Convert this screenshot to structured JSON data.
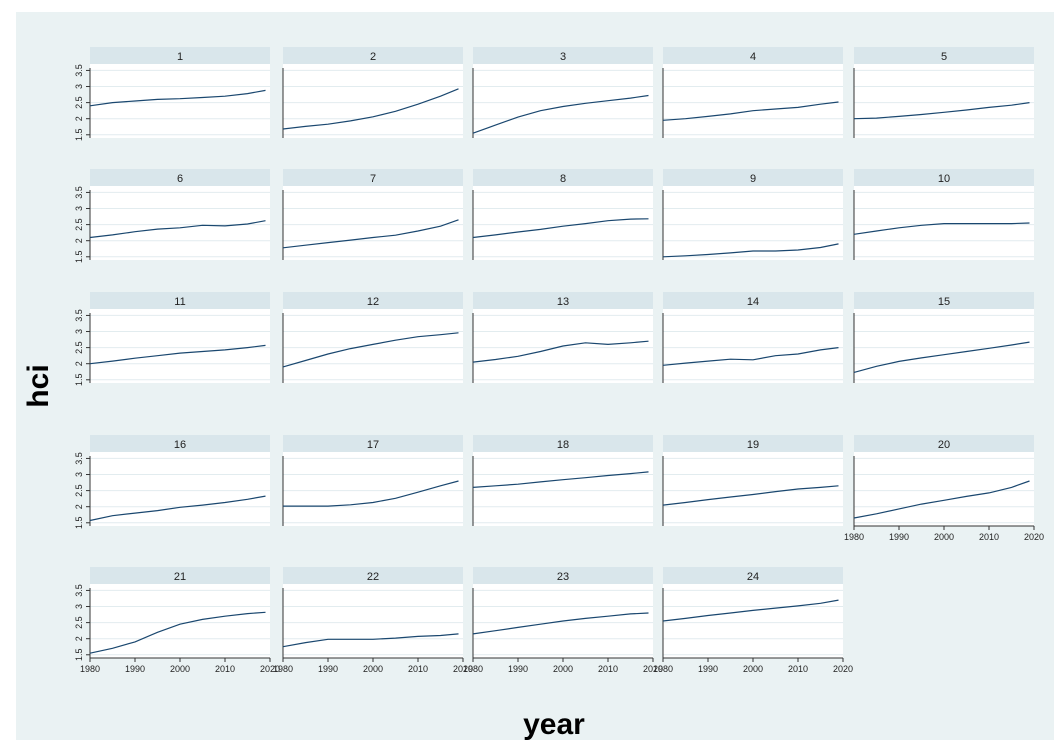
{
  "chart_data": {
    "type": "line",
    "xlabel": "year",
    "ylabel": "hci",
    "xlim": [
      1980,
      2020
    ],
    "ylim": [
      1.4,
      3.7
    ],
    "xticks": [
      1980,
      1990,
      2000,
      2010,
      2020
    ],
    "yticks": [
      1.5,
      2,
      2.5,
      3,
      3.5
    ],
    "xtick_labels": [
      "1980",
      "1990",
      "2000",
      "2010",
      "2020"
    ],
    "ytick_labels": [
      "1.5",
      "2",
      "2.5",
      "3",
      "3.5"
    ],
    "grid": true,
    "x": [
      1980,
      1985,
      1990,
      1995,
      2000,
      2005,
      2010,
      2015,
      2019
    ],
    "series": [
      {
        "panel": "1",
        "values": [
          2.4,
          2.5,
          2.55,
          2.6,
          2.62,
          2.66,
          2.7,
          2.78,
          2.88
        ]
      },
      {
        "panel": "2",
        "values": [
          1.68,
          1.76,
          1.83,
          1.93,
          2.06,
          2.23,
          2.45,
          2.7,
          2.93
        ]
      },
      {
        "panel": "3",
        "values": [
          1.55,
          1.8,
          2.05,
          2.25,
          2.38,
          2.48,
          2.56,
          2.64,
          2.72
        ]
      },
      {
        "panel": "4",
        "values": [
          1.95,
          2.0,
          2.07,
          2.15,
          2.25,
          2.3,
          2.35,
          2.45,
          2.52
        ]
      },
      {
        "panel": "5",
        "values": [
          2.0,
          2.02,
          2.07,
          2.13,
          2.2,
          2.27,
          2.35,
          2.42,
          2.5
        ]
      },
      {
        "panel": "6",
        "values": [
          2.1,
          2.18,
          2.28,
          2.36,
          2.4,
          2.48,
          2.46,
          2.52,
          2.62
        ]
      },
      {
        "panel": "7",
        "values": [
          1.78,
          1.86,
          1.94,
          2.02,
          2.1,
          2.17,
          2.3,
          2.45,
          2.65
        ]
      },
      {
        "panel": "8",
        "values": [
          2.1,
          2.18,
          2.27,
          2.35,
          2.45,
          2.53,
          2.62,
          2.67,
          2.68
        ]
      },
      {
        "panel": "9",
        "values": [
          1.5,
          1.53,
          1.57,
          1.62,
          1.68,
          1.68,
          1.71,
          1.79,
          1.9
        ]
      },
      {
        "panel": "10",
        "values": [
          2.2,
          2.3,
          2.4,
          2.48,
          2.53,
          2.53,
          2.53,
          2.53,
          2.55
        ]
      },
      {
        "panel": "11",
        "values": [
          2.0,
          2.08,
          2.17,
          2.25,
          2.33,
          2.38,
          2.43,
          2.5,
          2.57
        ]
      },
      {
        "panel": "12",
        "values": [
          1.9,
          2.1,
          2.3,
          2.47,
          2.6,
          2.73,
          2.84,
          2.9,
          2.96
        ]
      },
      {
        "panel": "13",
        "values": [
          2.05,
          2.13,
          2.23,
          2.38,
          2.55,
          2.65,
          2.6,
          2.65,
          2.7
        ]
      },
      {
        "panel": "14",
        "values": [
          1.95,
          2.02,
          2.08,
          2.14,
          2.12,
          2.25,
          2.3,
          2.43,
          2.5
        ]
      },
      {
        "panel": "15",
        "values": [
          1.73,
          1.92,
          2.07,
          2.18,
          2.28,
          2.38,
          2.48,
          2.58,
          2.67
        ]
      },
      {
        "panel": "16",
        "values": [
          1.57,
          1.72,
          1.8,
          1.88,
          1.98,
          2.05,
          2.13,
          2.23,
          2.33
        ]
      },
      {
        "panel": "17",
        "values": [
          2.02,
          2.02,
          2.02,
          2.06,
          2.13,
          2.26,
          2.45,
          2.65,
          2.8
        ]
      },
      {
        "panel": "18",
        "values": [
          2.6,
          2.65,
          2.7,
          2.77,
          2.84,
          2.9,
          2.97,
          3.03,
          3.08
        ]
      },
      {
        "panel": "19",
        "values": [
          2.05,
          2.13,
          2.22,
          2.3,
          2.38,
          2.47,
          2.55,
          2.6,
          2.65
        ]
      },
      {
        "panel": "20",
        "values": [
          1.65,
          1.78,
          1.93,
          2.08,
          2.2,
          2.32,
          2.43,
          2.6,
          2.8
        ]
      },
      {
        "panel": "21",
        "values": [
          1.55,
          1.7,
          1.9,
          2.2,
          2.45,
          2.6,
          2.7,
          2.78,
          2.82
        ]
      },
      {
        "panel": "22",
        "values": [
          1.75,
          1.88,
          1.98,
          1.98,
          1.98,
          2.02,
          2.07,
          2.1,
          2.15
        ]
      },
      {
        "panel": "23",
        "values": [
          2.15,
          2.25,
          2.35,
          2.45,
          2.55,
          2.63,
          2.7,
          2.77,
          2.8
        ]
      },
      {
        "panel": "24",
        "values": [
          2.55,
          2.63,
          2.72,
          2.8,
          2.88,
          2.95,
          3.02,
          3.1,
          3.2
        ]
      }
    ]
  }
}
